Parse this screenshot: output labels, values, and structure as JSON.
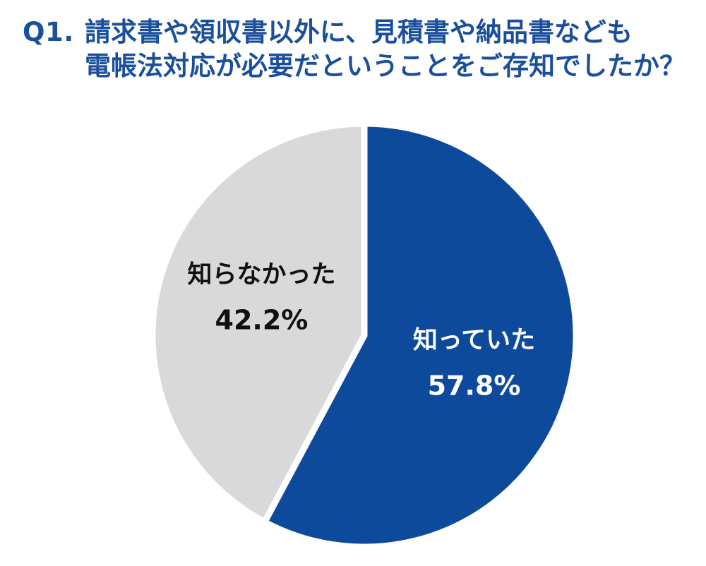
{
  "title": {
    "number": "Q1.",
    "line1": "請求書や領収書以外に、見積書や納品書なども",
    "line2": "電帳法対応が必要だということをご存知でしたか？"
  },
  "colors": {
    "title": "#1a4f9c",
    "known": "#0d4a9b",
    "unknown": "#d9d9d9",
    "separator": "#ffffff",
    "label_on_dark": "#ffffff",
    "label_on_light": "#111111"
  },
  "chart_data": {
    "type": "pie",
    "title": "請求書や領収書以外に、見積書や納品書なども電帳法対応が必要だということをご存知でしたか？",
    "start_angle_deg": 0,
    "direction": "clockwise",
    "slices": [
      {
        "label": "知っていた",
        "value": 57.8,
        "display": "57.8%",
        "color": "#0d4a9b",
        "text_color": "#ffffff"
      },
      {
        "label": "知らなかった",
        "value": 42.2,
        "display": "42.2%",
        "color": "#d9d9d9",
        "text_color": "#111111"
      }
    ]
  }
}
